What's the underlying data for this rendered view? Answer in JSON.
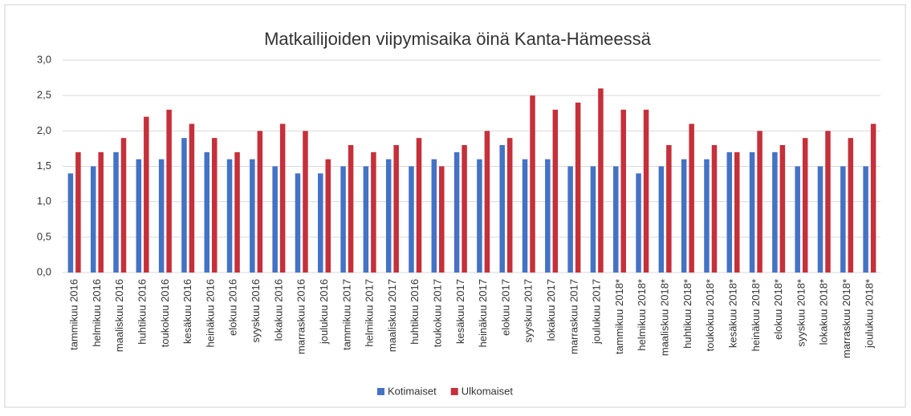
{
  "chart_data": {
    "type": "bar",
    "title": "Matkailijoiden viipymisaika öinä Kanta-Hämeessä",
    "categories": [
      "tammikuu 2016",
      "helmikuu 2016",
      "maaliskuu 2016",
      "huhtikuu 2016",
      "toukokuu 2016",
      "kesäkuu 2016",
      "heinäkuu 2016",
      "elokuu 2016",
      "syyskuu 2016",
      "lokakuu 2016",
      "marraskuu 2016",
      "joulukuu 2016",
      "tammikuu 2017",
      "helmikuu 2017",
      "maaliskuu 2017",
      "huhtikuu 2016",
      "toukokuu 2017",
      "kesäkuu 2017",
      "heinäkuu 2017",
      "elokuu 2017",
      "syyskuu 2017",
      "lokakuu 2017",
      "marraskuu 2017",
      "joulukuu 2017",
      "tammikuu 2018*",
      "helmikuu 2018*",
      "maaliskuu 2018*",
      "huhtikuu 2018*",
      "toukokuu 2018*",
      "kesäkuu 2018*",
      "heinäkuu 2018*",
      "elokuu 2018*",
      "syyskuu 2018*",
      "lokakuu 2018*",
      "marraskuu 2018*",
      "joulukuu 2018*"
    ],
    "series": [
      {
        "name": "Kotimaiset",
        "color": "#4472c4",
        "values": [
          1.4,
          1.5,
          1.7,
          1.6,
          1.6,
          1.9,
          1.7,
          1.6,
          1.6,
          1.5,
          1.4,
          1.4,
          1.5,
          1.5,
          1.6,
          1.5,
          1.6,
          1.7,
          1.6,
          1.8,
          1.6,
          1.6,
          1.5,
          1.5,
          1.5,
          1.4,
          1.5,
          1.6,
          1.6,
          1.7,
          1.7,
          1.7,
          1.5,
          1.5,
          1.5,
          1.5
        ]
      },
      {
        "name": "Ulkomaiset",
        "color": "#c5303a",
        "values": [
          1.7,
          1.7,
          1.9,
          2.2,
          2.3,
          2.1,
          1.9,
          1.7,
          2.0,
          2.1,
          2.0,
          1.6,
          1.8,
          1.7,
          1.8,
          1.9,
          1.5,
          1.8,
          2.0,
          1.9,
          2.5,
          2.3,
          2.4,
          2.6,
          2.3,
          2.3,
          1.8,
          2.1,
          1.8,
          1.7,
          2.0,
          1.8,
          1.9,
          2.0,
          1.9,
          2.1
        ]
      }
    ],
    "ylim": [
      0,
      3
    ],
    "yticks": [
      {
        "value": 0,
        "label": "0,0"
      },
      {
        "value": 0.5,
        "label": "0,5"
      },
      {
        "value": 1,
        "label": "1,0"
      },
      {
        "value": 1.5,
        "label": "1,5"
      },
      {
        "value": 2,
        "label": "2,0"
      },
      {
        "value": 2.5,
        "label": "2,5"
      },
      {
        "value": 3,
        "label": "3,0"
      }
    ],
    "grid": true,
    "legend": "bottom"
  }
}
